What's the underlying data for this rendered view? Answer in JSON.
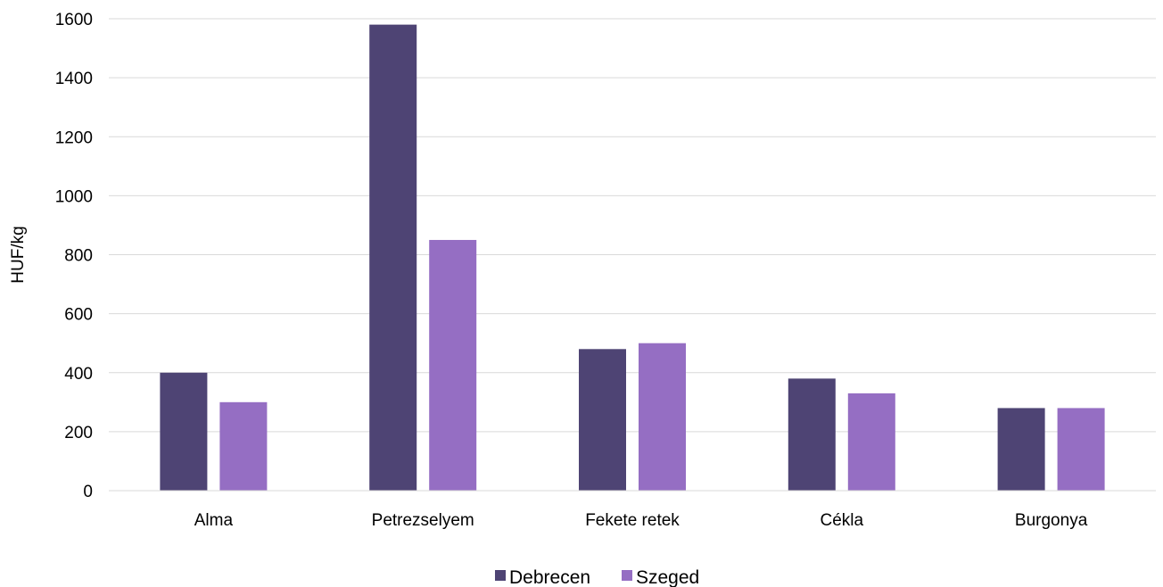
{
  "chart_data": {
    "type": "bar",
    "title": "",
    "xlabel": "",
    "ylabel": "HUF/kg",
    "ylim": [
      0,
      1600
    ],
    "yticks": [
      0,
      200,
      400,
      600,
      800,
      1000,
      1200,
      1400,
      1600
    ],
    "categories": [
      "Alma",
      "Petrezselyem",
      "Fekete retek",
      "Cékla",
      "Burgonya"
    ],
    "series": [
      {
        "name": "Debrecen",
        "values": [
          400,
          1580,
          480,
          380,
          280
        ],
        "color": "#4e4474"
      },
      {
        "name": "Szeged",
        "values": [
          300,
          850,
          500,
          330,
          280
        ],
        "color": "#956ec3"
      }
    ],
    "grid": true,
    "gridColor": "#d9d9d9",
    "legend": "bottom-center"
  }
}
